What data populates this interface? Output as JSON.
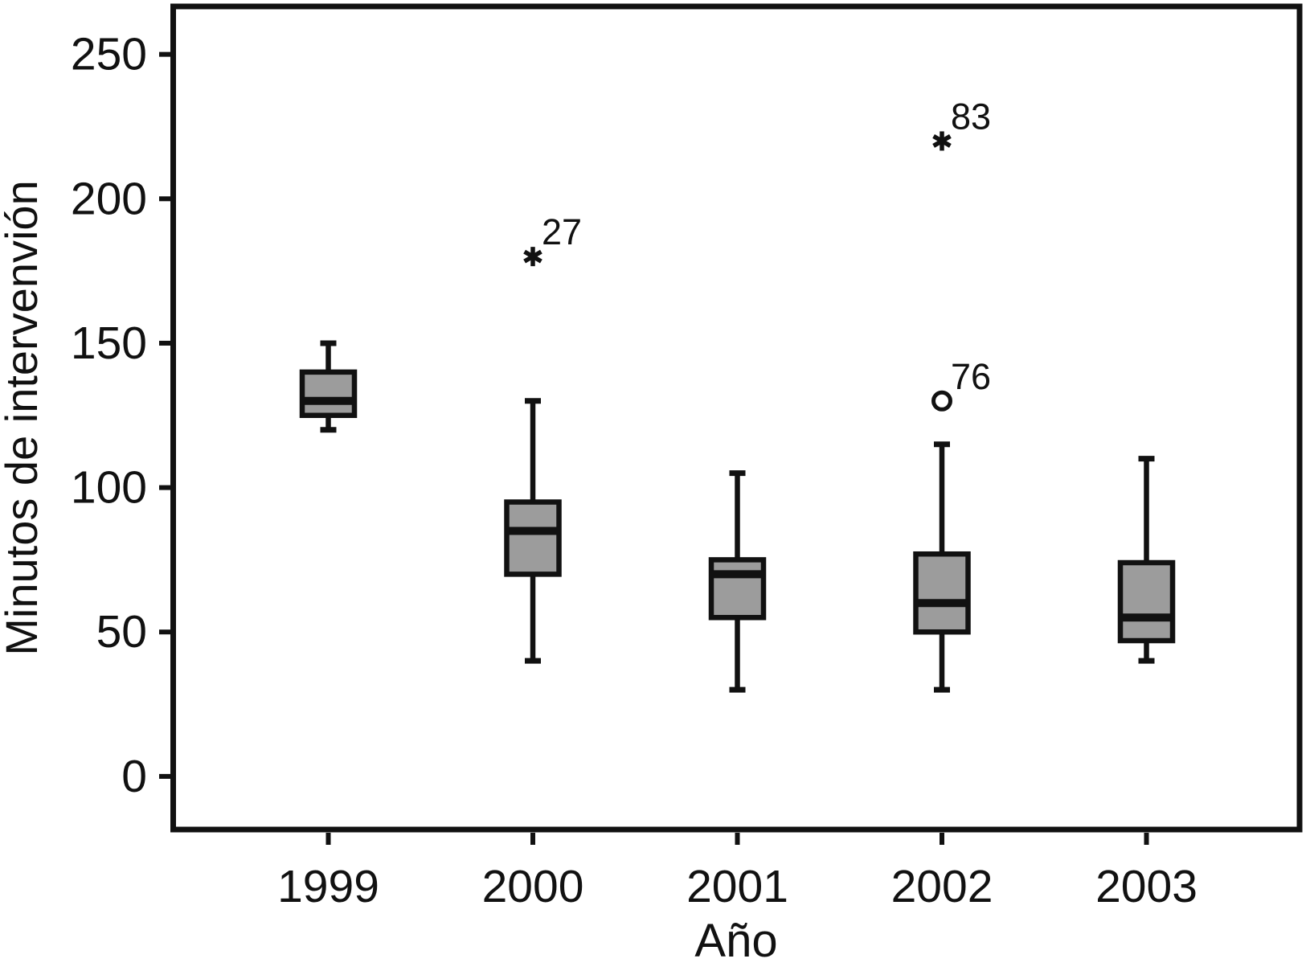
{
  "figure": {
    "background": "#ffffff",
    "ink_color": "#111111",
    "box_fill": "#9c9c9c"
  },
  "chart_data": {
    "type": "boxplot",
    "title": "",
    "xlabel": "Año",
    "ylabel": "Minutos de intervenvión",
    "categories": [
      "1999",
      "2000",
      "2001",
      "2002",
      "2003"
    ],
    "y_ticks": [
      0,
      50,
      100,
      150,
      200,
      250
    ],
    "ylim": [
      -18.4,
      266.6
    ],
    "grid": false,
    "legend": "none",
    "series": [
      {
        "category": "1999",
        "whisker_low": 120,
        "q1": 125,
        "median": 130,
        "q3": 140,
        "whisker_high": 150,
        "outliers": []
      },
      {
        "category": "2000",
        "whisker_low": 40,
        "q1": 70,
        "median": 85,
        "q3": 95,
        "whisker_high": 130,
        "outliers": [
          {
            "value": 180,
            "case_label": "27",
            "marker": "asterisk-extreme"
          }
        ]
      },
      {
        "category": "2001",
        "whisker_low": 30,
        "q1": 55,
        "median": 70,
        "q3": 75,
        "whisker_high": 105,
        "outliers": []
      },
      {
        "category": "2002",
        "whisker_low": 30,
        "q1": 50,
        "median": 60,
        "q3": 77,
        "whisker_high": 115,
        "outliers": [
          {
            "value": 130,
            "case_label": "76",
            "marker": "circle-mild"
          },
          {
            "value": 220,
            "case_label": "83",
            "marker": "asterisk-extreme"
          }
        ]
      },
      {
        "category": "2003",
        "whisker_low": 40,
        "q1": 47,
        "median": 55,
        "q3": 74,
        "whisker_high": 110,
        "outliers": []
      }
    ]
  }
}
